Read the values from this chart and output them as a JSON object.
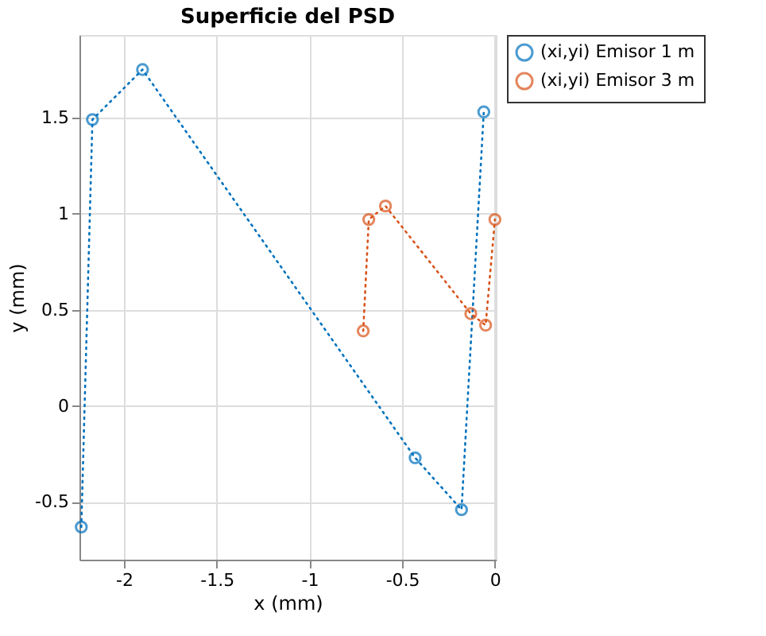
{
  "chart_data": {
    "type": "line",
    "title": "Superficie del PSD",
    "xlabel": "x (mm)",
    "ylabel": "y (mm)",
    "series": [
      {
        "name": "(xi,yi) Emisor 1 m",
        "color": "#0072bd",
        "x": [
          -2.23,
          -2.17,
          -1.9,
          -0.43,
          -0.18,
          -0.06
        ],
        "values": [
          -0.63,
          1.49,
          1.75,
          -0.27,
          -0.54,
          1.53
        ]
      },
      {
        "name": "(xi,yi) Emisor 3 m",
        "color": "#d95319",
        "x": [
          -0.71,
          -0.68,
          -0.59,
          -0.13,
          -0.05,
          0.0
        ],
        "values": [
          0.39,
          0.97,
          1.04,
          0.48,
          0.42,
          0.97
        ]
      }
    ],
    "xlim": [
      -2.24,
      0.005
    ],
    "ylim": [
      -0.8,
      1.93
    ],
    "xticks": [
      -2,
      -1.5,
      -1,
      -0.5,
      0
    ],
    "yticks": [
      -0.5,
      0,
      0.5,
      1,
      1.5
    ],
    "grid": true,
    "legend": "top right",
    "marker": "circle",
    "line_style": "dotted"
  }
}
